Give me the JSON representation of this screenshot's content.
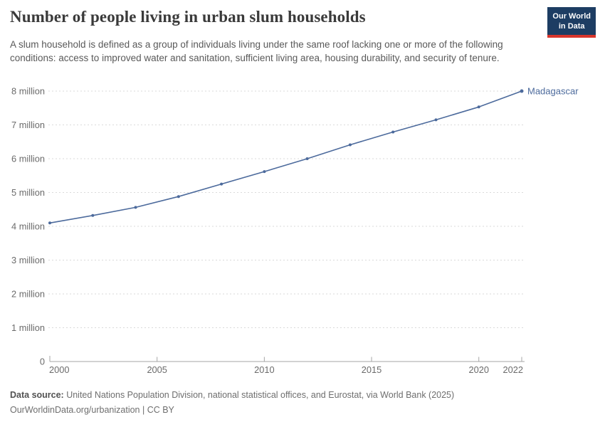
{
  "header": {
    "title": "Number of people living in urban slum households",
    "subtitle": "A slum household is defined as a group of individuals living under the same roof lacking one or more of the following conditions: access to improved water and sanitation, sufficient living area, housing durability, and security of tenure.",
    "logo": {
      "line1": "Our World",
      "line2": "in Data",
      "bg_color": "#1d3d63",
      "accent_color": "#d8352c"
    }
  },
  "chart_data": {
    "type": "line",
    "title": "Number of people living in urban slum households",
    "entity_label": "Madagascar",
    "unit": "million people",
    "x": [
      2000,
      2002,
      2004,
      2006,
      2008,
      2010,
      2012,
      2014,
      2016,
      2018,
      2020,
      2022
    ],
    "values": [
      4.1,
      4.32,
      4.56,
      4.88,
      5.25,
      5.62,
      6.0,
      6.41,
      6.79,
      7.15,
      7.53,
      8.0
    ],
    "xlim": [
      2000,
      2022
    ],
    "ylim": [
      0,
      8
    ],
    "x_ticks": [
      {
        "v": 2000,
        "label": "2000",
        "align": "start"
      },
      {
        "v": 2005,
        "label": "2005",
        "align": "middle"
      },
      {
        "v": 2010,
        "label": "2010",
        "align": "middle"
      },
      {
        "v": 2015,
        "label": "2015",
        "align": "middle"
      },
      {
        "v": 2020,
        "label": "2020",
        "align": "middle"
      },
      {
        "v": 2022,
        "label": "2022",
        "align": "end"
      }
    ],
    "y_ticks": [
      {
        "v": 0,
        "label": "0"
      },
      {
        "v": 1,
        "label": "1 million"
      },
      {
        "v": 2,
        "label": "2 million"
      },
      {
        "v": 3,
        "label": "3 million"
      },
      {
        "v": 4,
        "label": "4 million"
      },
      {
        "v": 5,
        "label": "5 million"
      },
      {
        "v": 6,
        "label": "6 million"
      },
      {
        "v": 7,
        "label": "7 million"
      },
      {
        "v": 8,
        "label": "8 million"
      }
    ],
    "line_color": "#4C6A9C",
    "grid_color": "#dadada",
    "axis_color": "#a6a6a6",
    "tick_label_color": "#6b6b6b",
    "grid": "horizontal dashed",
    "legend_position": "end-of-line label"
  },
  "footer": {
    "datasource_label": "Data source:",
    "datasource_text": " United Nations Population Division, national statistical offices, and Eurostat, via World Bank (2025)",
    "license_text": "OurWorldinData.org/urbanization | CC BY"
  }
}
